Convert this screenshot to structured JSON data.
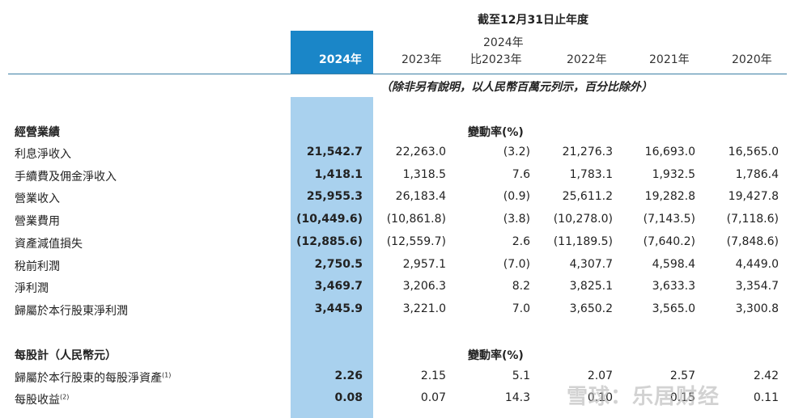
{
  "header": {
    "period_title": "截至12月31日止年度",
    "current_year": "2024年",
    "years": [
      "2023年",
      "2022年",
      "2021年",
      "2020年"
    ],
    "comparison_line1": "2024年",
    "comparison_line2": "比2023年",
    "note": "（除非另有說明，以人民幣百萬元列示，百分比除外）"
  },
  "operating": {
    "section_title": "經營業績",
    "change_label": "變動率(%)",
    "rows": [
      {
        "label": "利息淨收入",
        "y2024": "21,542.7",
        "y2023": "22,263.0",
        "chg": "(3.2)",
        "y2022": "21,276.3",
        "y2021": "16,693.0",
        "y2020": "16,565.0"
      },
      {
        "label": "手續費及佣金淨收入",
        "y2024": "1,418.1",
        "y2023": "1,318.5",
        "chg": "7.6",
        "y2022": "1,783.1",
        "y2021": "1,932.5",
        "y2020": "1,786.4"
      },
      {
        "label": "營業收入",
        "y2024": "25,955.3",
        "y2023": "26,183.4",
        "chg": "(0.9)",
        "y2022": "25,611.2",
        "y2021": "19,282.8",
        "y2020": "19,427.8"
      },
      {
        "label": "營業費用",
        "y2024": "(10,449.6)",
        "y2023": "(10,861.8)",
        "chg": "(3.8)",
        "y2022": "(10,278.0)",
        "y2021": "(7,143.5)",
        "y2020": "(7,118.6)"
      },
      {
        "label": "資產減值損失",
        "y2024": "(12,885.6)",
        "y2023": "(12,559.7)",
        "chg": "2.6",
        "y2022": "(11,189.5)",
        "y2021": "(7,640.2)",
        "y2020": "(7,848.6)"
      },
      {
        "label": "稅前利潤",
        "y2024": "2,750.5",
        "y2023": "2,957.1",
        "chg": "(7.0)",
        "y2022": "4,307.7",
        "y2021": "4,598.4",
        "y2020": "4,449.0"
      },
      {
        "label": "淨利潤",
        "y2024": "3,469.7",
        "y2023": "3,206.3",
        "chg": "8.2",
        "y2022": "3,825.1",
        "y2021": "3,633.3",
        "y2020": "3,354.7"
      },
      {
        "label": "歸屬於本行股東淨利潤",
        "y2024": "3,445.9",
        "y2023": "3,221.0",
        "chg": "7.0",
        "y2022": "3,650.2",
        "y2021": "3,565.0",
        "y2020": "3,300.8"
      }
    ]
  },
  "per_share": {
    "section_title": "每股計（人民幣元）",
    "change_label": "變動率(%)",
    "rows": [
      {
        "label": "歸屬於本行股東的每股淨資產",
        "sup": "(1)",
        "y2024": "2.26",
        "y2023": "2.15",
        "chg": "5.1",
        "y2022": "2.07",
        "y2021": "2.57",
        "y2020": "2.42"
      },
      {
        "label": "每股收益",
        "sup": "(2)",
        "y2024": "0.08",
        "y2023": "0.07",
        "chg": "14.3",
        "y2022": "0.10",
        "y2021": "0.15",
        "y2020": "0.11"
      }
    ]
  },
  "watermark": "雪球：乐居财经"
}
